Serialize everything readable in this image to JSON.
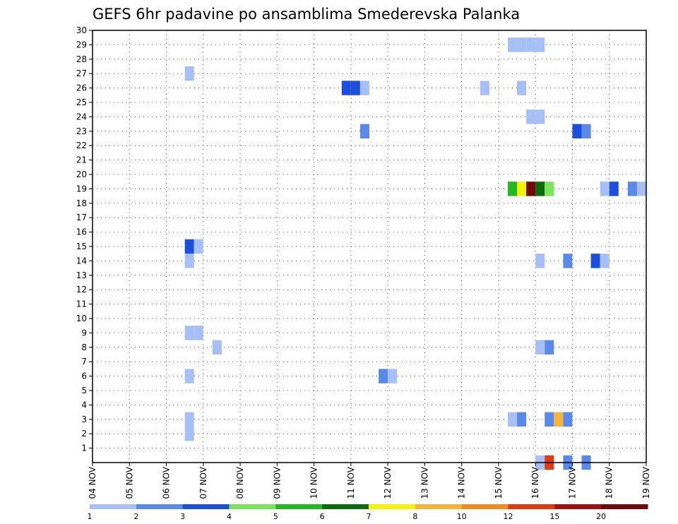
{
  "chart_data": {
    "type": "heatmap",
    "title": "GEFS 6hr padavine po ansamblima Smederevska Palanka",
    "xlabel": "",
    "ylabel": "",
    "x_ticks": [
      "04 NOV",
      "05 NOV",
      "06 NOV",
      "07 NOV",
      "08 NOV",
      "09 NOV",
      "10 NOV",
      "11 NOV",
      "12 NOV",
      "13 NOV",
      "14 NOV",
      "15 NOV",
      "16 NOV",
      "17 NOV",
      "18 NOV",
      "19 NOV"
    ],
    "y_ticks": [
      1,
      2,
      3,
      4,
      5,
      6,
      7,
      8,
      9,
      10,
      11,
      12,
      13,
      14,
      15,
      16,
      17,
      18,
      19,
      20,
      21,
      22,
      23,
      24,
      25,
      26,
      27,
      28,
      29,
      30
    ],
    "xlim_days": [
      0,
      15
    ],
    "ylim": [
      0,
      30
    ],
    "grid": true,
    "colorbar": {
      "labels": [
        "1",
        "2",
        "3",
        "4",
        "5",
        "6",
        "7",
        "8",
        "10",
        "12",
        "15",
        "20"
      ],
      "colors": [
        "#a6bff5",
        "#5b89ea",
        "#1c4fdb",
        "#79e45a",
        "#22b822",
        "#0d6b0d",
        "#f2f20a",
        "#f5b53b",
        "#f18a1c",
        "#dd3a14",
        "#a11010",
        "#6e0a0a"
      ]
    },
    "cells": [
      {
        "d": 2.625,
        "y": 27,
        "c": 1
      },
      {
        "d": 2.625,
        "y": 15,
        "c": 3
      },
      {
        "d": 2.875,
        "y": 15,
        "c": 1
      },
      {
        "d": 2.625,
        "y": 14,
        "c": 1
      },
      {
        "d": 2.625,
        "y": 9,
        "c": 1
      },
      {
        "d": 2.875,
        "y": 9,
        "c": 1
      },
      {
        "d": 3.375,
        "y": 8,
        "c": 1
      },
      {
        "d": 2.625,
        "y": 6,
        "c": 1
      },
      {
        "d": 2.625,
        "y": 3,
        "c": 1
      },
      {
        "d": 2.625,
        "y": 2,
        "c": 1
      },
      {
        "d": 6.875,
        "y": 26,
        "c": 3
      },
      {
        "d": 7.125,
        "y": 26,
        "c": 3
      },
      {
        "d": 7.375,
        "y": 26,
        "c": 1
      },
      {
        "d": 7.375,
        "y": 23,
        "c": 2
      },
      {
        "d": 7.875,
        "y": 6,
        "c": 2
      },
      {
        "d": 8.125,
        "y": 6,
        "c": 1
      },
      {
        "d": 10.625,
        "y": 26,
        "c": 1
      },
      {
        "d": 11.375,
        "y": 29,
        "c": 1
      },
      {
        "d": 11.625,
        "y": 29,
        "c": 1
      },
      {
        "d": 11.875,
        "y": 29,
        "c": 1
      },
      {
        "d": 12.125,
        "y": 29,
        "c": 1
      },
      {
        "d": 11.625,
        "y": 26,
        "c": 1
      },
      {
        "d": 11.875,
        "y": 24,
        "c": 1
      },
      {
        "d": 12.125,
        "y": 24,
        "c": 1
      },
      {
        "d": 11.375,
        "y": 19,
        "c": 5
      },
      {
        "d": 11.625,
        "y": 19,
        "c": 7
      },
      {
        "d": 11.875,
        "y": 19,
        "c": 12
      },
      {
        "d": 12.125,
        "y": 19,
        "c": 6
      },
      {
        "d": 12.375,
        "y": 19,
        "c": 4
      },
      {
        "d": 12.125,
        "y": 14,
        "c": 1
      },
      {
        "d": 12.125,
        "y": 8,
        "c": 1
      },
      {
        "d": 12.375,
        "y": 8,
        "c": 2
      },
      {
        "d": 11.375,
        "y": 3,
        "c": 1
      },
      {
        "d": 11.625,
        "y": 3,
        "c": 2
      },
      {
        "d": 12.375,
        "y": 3,
        "c": 2
      },
      {
        "d": 12.625,
        "y": 3,
        "c": 8
      },
      {
        "d": 12.875,
        "y": 3,
        "c": 2
      },
      {
        "d": 12.125,
        "y": 0,
        "c": 1
      },
      {
        "d": 12.375,
        "y": 0,
        "c": 10
      },
      {
        "d": 12.875,
        "y": 0,
        "c": 2
      },
      {
        "d": 13.375,
        "y": 0,
        "c": 2
      },
      {
        "d": 12.875,
        "y": 14,
        "c": 2
      },
      {
        "d": 13.125,
        "y": 23,
        "c": 3
      },
      {
        "d": 13.375,
        "y": 23,
        "c": 2
      },
      {
        "d": 13.625,
        "y": 14,
        "c": 3
      },
      {
        "d": 13.875,
        "y": 14,
        "c": 1
      },
      {
        "d": 13.875,
        "y": 19,
        "c": 1
      },
      {
        "d": 14.125,
        "y": 19,
        "c": 3
      },
      {
        "d": 14.625,
        "y": 19,
        "c": 2
      },
      {
        "d": 14.875,
        "y": 19,
        "c": 1
      }
    ]
  }
}
